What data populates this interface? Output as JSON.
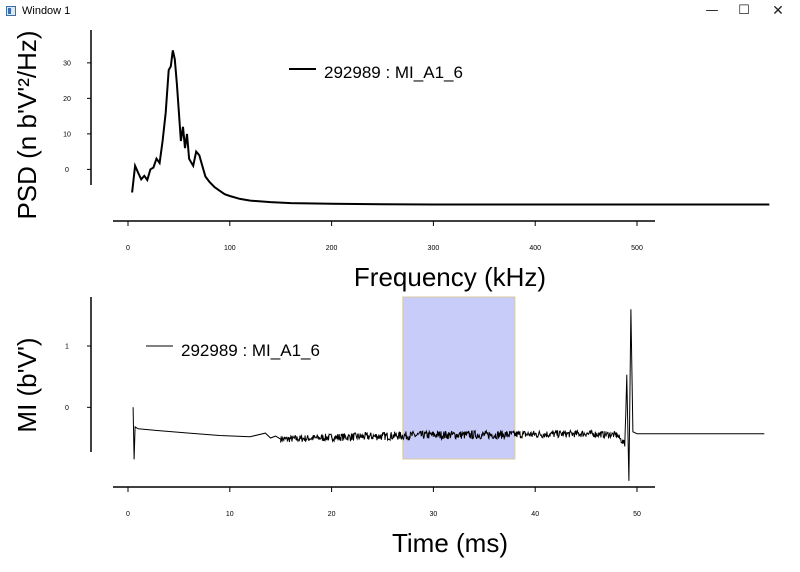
{
  "window": {
    "title": "Window 1",
    "minimize_icon": "minimize-icon",
    "maximize_icon": "maximize-icon",
    "close_icon": "close-icon"
  },
  "chart_data": [
    {
      "type": "line",
      "xlabel": "Frequency (kHz)",
      "ylabel": "PSD (n b'V'²/Hz)",
      "xlim": [
        -8,
        520
      ],
      "ylim": [
        -12,
        37
      ],
      "xticks": [
        0,
        100,
        200,
        300,
        400,
        500
      ],
      "yticks": [
        0,
        10,
        20,
        30
      ],
      "grid": false,
      "legend_position": "top-center",
      "series": [
        {
          "name": "292989 : MI_A1_6",
          "color": "#000000",
          "x": [
            4,
            7,
            10,
            13,
            16,
            19,
            22,
            25,
            28,
            31,
            34,
            37,
            40,
            42,
            44,
            46,
            48,
            50,
            52,
            54,
            56,
            58,
            60,
            62,
            64,
            67,
            70,
            73,
            76,
            80,
            85,
            90,
            95,
            100,
            110,
            120,
            140,
            160,
            200,
            250,
            300,
            400,
            500,
            630
          ],
          "y": [
            -6.5,
            1,
            -1,
            -2.8,
            -1.8,
            -3,
            0,
            0.5,
            3,
            1.8,
            8,
            16,
            28,
            29,
            33.5,
            31,
            24,
            16,
            8,
            12,
            6,
            10,
            3,
            2,
            1,
            5,
            4,
            1,
            -2,
            -3.5,
            -5,
            -6,
            -7,
            -7.5,
            -8.3,
            -8.8,
            -9.2,
            -9.5,
            -9.7,
            -9.8,
            -9.9,
            -9.9,
            -9.9,
            -9.9
          ]
        }
      ]
    },
    {
      "type": "line",
      "xlabel": "Time (ms)",
      "ylabel": "MI (b'V')",
      "xlim": [
        -0.7,
        52
      ],
      "ylim": [
        -1.3,
        1.8
      ],
      "xticks": [
        0,
        10,
        20,
        30,
        40,
        50
      ],
      "yticks": [
        0,
        1
      ],
      "grid": false,
      "legend_position": "top-left",
      "highlight_span": [
        27,
        38
      ],
      "highlight_color": "#c8ccf8",
      "series": [
        {
          "name": "292989 : MI_A1_6",
          "color": "#000000",
          "x": [
            0.5,
            0.6,
            0.7,
            1,
            3,
            6,
            9,
            12,
            13.5,
            14,
            14.5,
            15,
            17,
            20,
            25,
            30,
            35,
            40,
            45,
            48,
            48.8,
            49,
            49.2,
            49.4,
            49.6,
            50,
            55,
            62.5
          ],
          "y": [
            0,
            -0.85,
            -0.32,
            -0.35,
            -0.38,
            -0.42,
            -0.46,
            -0.48,
            -0.42,
            -0.5,
            -0.47,
            -0.52,
            -0.51,
            -0.49,
            -0.47,
            -0.45,
            -0.45,
            -0.44,
            -0.43,
            -0.45,
            -0.6,
            0.5,
            -1.2,
            1.6,
            -0.4,
            -0.43,
            -0.43,
            -0.43
          ],
          "noise_start": 15,
          "noise_end": 49,
          "noise_amplitude": 0.05
        }
      ]
    }
  ]
}
